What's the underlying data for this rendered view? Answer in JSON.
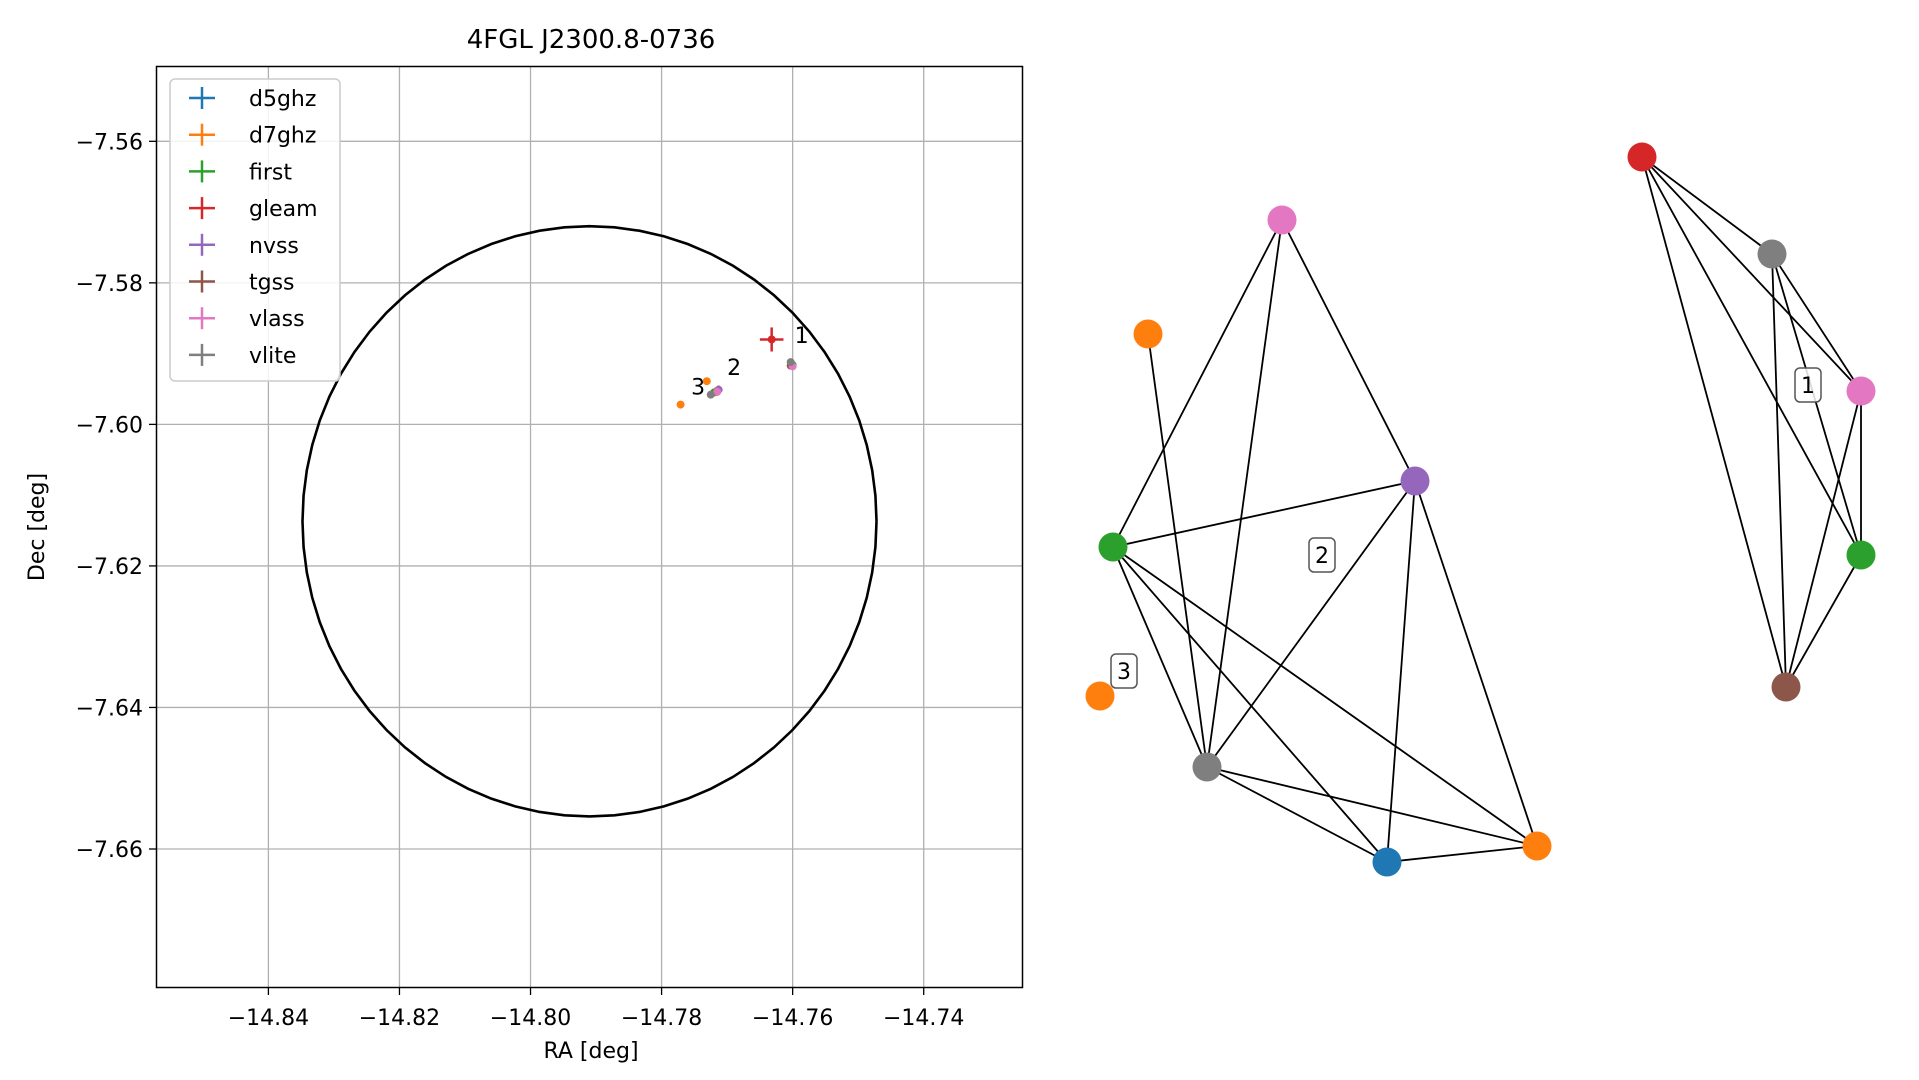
{
  "chart_data": [
    {
      "type": "scatter",
      "title": "4FGL J2300.8-0736",
      "xlabel": "RA [deg]",
      "ylabel": "Dec [deg]",
      "xlim": [
        -14.857,
        -14.725
      ],
      "ylim": [
        -7.6795,
        -7.5495
      ],
      "xticks": [
        -14.84,
        -14.82,
        -14.8,
        -14.78,
        -14.76,
        -14.74
      ],
      "xtick_labels": [
        "−14.84",
        "−14.82",
        "−14.80",
        "−14.78",
        "−14.76",
        "−14.74"
      ],
      "yticks": [
        -7.56,
        -7.58,
        -7.6,
        -7.62,
        -7.64,
        -7.66
      ],
      "ytick_labels": [
        "−7.56",
        "−7.58",
        "−7.60",
        "−7.62",
        "−7.64",
        "−7.66"
      ],
      "grid": true,
      "legend_position": "upper-left",
      "legend": [
        {
          "name": "d5ghz",
          "color": "#1f77b4"
        },
        {
          "name": "d7ghz",
          "color": "#ff7f0e"
        },
        {
          "name": "first",
          "color": "#2ca02c"
        },
        {
          "name": "gleam",
          "color": "#d62728"
        },
        {
          "name": "nvss",
          "color": "#9467bd"
        },
        {
          "name": "tgss",
          "color": "#8c564b"
        },
        {
          "name": "vlass",
          "color": "#e377c2"
        },
        {
          "name": "vlite",
          "color": "#7f7f7f"
        }
      ],
      "ellipse": {
        "center_ra": -14.791,
        "center_dec": -7.6137,
        "radius_ra": 0.0438,
        "radius_dec": 0.0417,
        "color": "#000000"
      },
      "points": [
        {
          "survey": "d5ghz",
          "ra": -14.7716,
          "dec": -7.5954,
          "ra_err": 0.0003,
          "dec_err": 0.0003,
          "color": "#1f77b4"
        },
        {
          "survey": "d7ghz",
          "ra": -14.7731,
          "dec": -7.5939,
          "ra_err": 0.0003,
          "dec_err": 0.0003,
          "color": "#ff7f0e"
        },
        {
          "survey": "d7ghz",
          "ra": -14.7771,
          "dec": -7.5972,
          "ra_err": 0.0003,
          "dec_err": 0.0003,
          "color": "#ff7f0e"
        },
        {
          "survey": "d7ghz",
          "ra": -14.7716,
          "dec": -7.5953,
          "ra_err": 0.0003,
          "dec_err": 0.0003,
          "color": "#ff7f0e"
        },
        {
          "survey": "first",
          "ra": -14.76,
          "dec": -7.5916,
          "ra_err": 0.0003,
          "dec_err": 0.0003,
          "color": "#2ca02c"
        },
        {
          "survey": "first",
          "ra": -14.772,
          "dec": -7.5955,
          "ra_err": 0.0003,
          "dec_err": 0.0003,
          "color": "#2ca02c"
        },
        {
          "survey": "gleam",
          "ra": -14.7632,
          "dec": -7.588,
          "ra_err": 0.0018,
          "dec_err": 0.0017,
          "color": "#d62728"
        },
        {
          "survey": "nvss",
          "ra": -14.7713,
          "dec": -7.5951,
          "ra_err": 0.0006,
          "dec_err": 0.0006,
          "color": "#9467bd"
        },
        {
          "survey": "tgss",
          "ra": -14.7603,
          "dec": -7.5917,
          "ra_err": 0.0004,
          "dec_err": 0.0004,
          "color": "#8c564b"
        },
        {
          "survey": "vlass",
          "ra": -14.76,
          "dec": -7.5918,
          "ra_err": 0.0002,
          "dec_err": 0.0002,
          "color": "#e377c2"
        },
        {
          "survey": "vlass",
          "ra": -14.7715,
          "dec": -7.5954,
          "ra_err": 0.0002,
          "dec_err": 0.0002,
          "color": "#e377c2"
        },
        {
          "survey": "vlite",
          "ra": -14.7603,
          "dec": -7.5912,
          "ra_err": 0.0004,
          "dec_err": 0.0004,
          "color": "#7f7f7f"
        },
        {
          "survey": "vlite",
          "ra": -14.7725,
          "dec": -7.5958,
          "ra_err": 0.0004,
          "dec_err": 0.0004,
          "color": "#7f7f7f"
        }
      ],
      "annotations": [
        {
          "text": "1",
          "ra": -14.7597,
          "dec": -7.5885
        },
        {
          "text": "2",
          "ra": -14.77,
          "dec": -7.593
        },
        {
          "text": "3",
          "ra": -14.7755,
          "dec": -7.5958
        }
      ]
    },
    {
      "type": "network",
      "clusters": [
        {
          "label": "1",
          "nodes": [
            {
              "id": "gleam",
              "color": "#d62728"
            },
            {
              "id": "vlite",
              "color": "#7f7f7f"
            },
            {
              "id": "vlass",
              "color": "#e377c2"
            },
            {
              "id": "first",
              "color": "#2ca02c"
            },
            {
              "id": "tgss",
              "color": "#8c564b"
            }
          ],
          "edges": [
            [
              "gleam",
              "vlite"
            ],
            [
              "gleam",
              "vlass"
            ],
            [
              "gleam",
              "first"
            ],
            [
              "gleam",
              "tgss"
            ],
            [
              "vlite",
              "vlass"
            ],
            [
              "vlite",
              "first"
            ],
            [
              "vlite",
              "tgss"
            ],
            [
              "vlass",
              "first"
            ],
            [
              "vlass",
              "tgss"
            ],
            [
              "first",
              "tgss"
            ]
          ]
        },
        {
          "label": "2",
          "nodes": [
            {
              "id": "vlass",
              "color": "#e377c2"
            },
            {
              "id": "d7ghz_a",
              "color": "#ff7f0e"
            },
            {
              "id": "nvss",
              "color": "#9467bd"
            },
            {
              "id": "first",
              "color": "#2ca02c"
            },
            {
              "id": "vlite",
              "color": "#7f7f7f"
            },
            {
              "id": "d5ghz",
              "color": "#1f77b4"
            },
            {
              "id": "d7ghz_b",
              "color": "#ff7f0e"
            }
          ],
          "edges": [
            [
              "vlass",
              "first"
            ],
            [
              "vlass",
              "vlite"
            ],
            [
              "vlass",
              "nvss"
            ],
            [
              "d7ghz_a",
              "vlite"
            ],
            [
              "first",
              "nvss"
            ],
            [
              "first",
              "vlite"
            ],
            [
              "first",
              "d5ghz"
            ],
            [
              "first",
              "d7ghz_b"
            ],
            [
              "nvss",
              "vlite"
            ],
            [
              "nvss",
              "d5ghz"
            ],
            [
              "nvss",
              "d7ghz_b"
            ],
            [
              "vlite",
              "d5ghz"
            ],
            [
              "vlite",
              "d7ghz_b"
            ],
            [
              "d5ghz",
              "d7ghz_b"
            ]
          ]
        },
        {
          "label": "3",
          "nodes": [
            {
              "id": "d7ghz",
              "color": "#ff7f0e"
            }
          ],
          "edges": []
        }
      ]
    }
  ]
}
